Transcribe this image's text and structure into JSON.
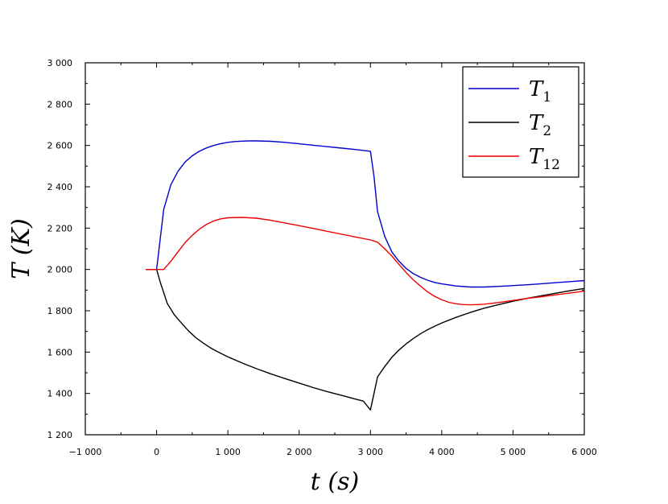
{
  "chart_data": {
    "type": "line",
    "xlabel": "t (s)",
    "ylabel": "T (K)",
    "xlim": [
      -1000,
      6000
    ],
    "ylim": [
      1200,
      3000
    ],
    "x_ticks": [
      -1000,
      0,
      1000,
      2000,
      3000,
      4000,
      5000,
      6000
    ],
    "x_tick_labels": [
      "−1 000",
      "0",
      "1 000",
      "2 000",
      "3 000",
      "4 000",
      "5 000",
      "6 000"
    ],
    "y_ticks": [
      1200,
      1400,
      1600,
      1800,
      2000,
      2200,
      2400,
      2600,
      2800,
      3000
    ],
    "y_tick_labels": [
      "1 200",
      "1 400",
      "1 600",
      "1 800",
      "2 000",
      "2 200",
      "2 400",
      "2 600",
      "2 800",
      "3 000"
    ],
    "grid": false,
    "legend_position": "top-right",
    "series": [
      {
        "name": "T1",
        "label_main": "T",
        "label_sub": "1",
        "color": "#0000cc",
        "points": [
          [
            -150,
            2000
          ],
          [
            0,
            2000
          ],
          [
            100,
            2290
          ],
          [
            200,
            2410
          ],
          [
            300,
            2475
          ],
          [
            400,
            2520
          ],
          [
            500,
            2550
          ],
          [
            600,
            2572
          ],
          [
            700,
            2588
          ],
          [
            800,
            2600
          ],
          [
            900,
            2609
          ],
          [
            1000,
            2615
          ],
          [
            1100,
            2619
          ],
          [
            1200,
            2621
          ],
          [
            1300,
            2622
          ],
          [
            1400,
            2622
          ],
          [
            1600,
            2620
          ],
          [
            1800,
            2615
          ],
          [
            2000,
            2608
          ],
          [
            2200,
            2601
          ],
          [
            2400,
            2594
          ],
          [
            2600,
            2587
          ],
          [
            2800,
            2580
          ],
          [
            3000,
            2572
          ],
          [
            3050,
            2450
          ],
          [
            3100,
            2280
          ],
          [
            3200,
            2160
          ],
          [
            3300,
            2085
          ],
          [
            3400,
            2040
          ],
          [
            3500,
            2005
          ],
          [
            3600,
            1980
          ],
          [
            3700,
            1962
          ],
          [
            3800,
            1948
          ],
          [
            3900,
            1937
          ],
          [
            4000,
            1930
          ],
          [
            4200,
            1920
          ],
          [
            4400,
            1915
          ],
          [
            4600,
            1915
          ],
          [
            4800,
            1918
          ],
          [
            5000,
            1922
          ],
          [
            5200,
            1926
          ],
          [
            5400,
            1931
          ],
          [
            5600,
            1936
          ],
          [
            5800,
            1941
          ],
          [
            6000,
            1946
          ]
        ]
      },
      {
        "name": "T2",
        "label_main": "T",
        "label_sub": "2",
        "color": "#000000",
        "points": [
          [
            -150,
            2000
          ],
          [
            0,
            2000
          ],
          [
            50,
            1940
          ],
          [
            150,
            1835
          ],
          [
            250,
            1780
          ],
          [
            350,
            1740
          ],
          [
            450,
            1702
          ],
          [
            550,
            1670
          ],
          [
            650,
            1645
          ],
          [
            750,
            1622
          ],
          [
            850,
            1603
          ],
          [
            1000,
            1577
          ],
          [
            1200,
            1547
          ],
          [
            1400,
            1520
          ],
          [
            1600,
            1495
          ],
          [
            1800,
            1472
          ],
          [
            2000,
            1450
          ],
          [
            2200,
            1428
          ],
          [
            2400,
            1408
          ],
          [
            2600,
            1390
          ],
          [
            2800,
            1372
          ],
          [
            2900,
            1363
          ],
          [
            3000,
            1320
          ],
          [
            3100,
            1480
          ],
          [
            3200,
            1530
          ],
          [
            3300,
            1575
          ],
          [
            3400,
            1610
          ],
          [
            3500,
            1640
          ],
          [
            3600,
            1665
          ],
          [
            3700,
            1688
          ],
          [
            3800,
            1708
          ],
          [
            3900,
            1725
          ],
          [
            4000,
            1741
          ],
          [
            4200,
            1768
          ],
          [
            4400,
            1792
          ],
          [
            4600,
            1813
          ],
          [
            4800,
            1830
          ],
          [
            5000,
            1846
          ],
          [
            5200,
            1860
          ],
          [
            5400,
            1873
          ],
          [
            5600,
            1885
          ],
          [
            5800,
            1897
          ],
          [
            6000,
            1908
          ]
        ]
      },
      {
        "name": "T12",
        "label_main": "T",
        "label_sub": "12",
        "color": "#ee0000",
        "points": [
          [
            -150,
            2000
          ],
          [
            100,
            2000
          ],
          [
            200,
            2040
          ],
          [
            300,
            2085
          ],
          [
            400,
            2130
          ],
          [
            500,
            2165
          ],
          [
            600,
            2195
          ],
          [
            700,
            2218
          ],
          [
            800,
            2235
          ],
          [
            900,
            2245
          ],
          [
            1000,
            2250
          ],
          [
            1200,
            2252
          ],
          [
            1400,
            2248
          ],
          [
            1600,
            2238
          ],
          [
            1800,
            2225
          ],
          [
            2000,
            2212
          ],
          [
            2200,
            2198
          ],
          [
            2400,
            2184
          ],
          [
            2600,
            2170
          ],
          [
            2800,
            2156
          ],
          [
            3000,
            2143
          ],
          [
            3100,
            2132
          ],
          [
            3200,
            2100
          ],
          [
            3300,
            2065
          ],
          [
            3400,
            2025
          ],
          [
            3500,
            1985
          ],
          [
            3600,
            1950
          ],
          [
            3700,
            1920
          ],
          [
            3800,
            1892
          ],
          [
            3900,
            1870
          ],
          [
            4000,
            1853
          ],
          [
            4100,
            1841
          ],
          [
            4200,
            1834
          ],
          [
            4300,
            1830
          ],
          [
            4400,
            1829
          ],
          [
            4500,
            1830
          ],
          [
            4600,
            1832
          ],
          [
            4800,
            1840
          ],
          [
            5000,
            1850
          ],
          [
            5200,
            1860
          ],
          [
            5400,
            1868
          ],
          [
            5600,
            1877
          ],
          [
            5800,
            1886
          ],
          [
            6000,
            1895
          ]
        ]
      }
    ]
  }
}
